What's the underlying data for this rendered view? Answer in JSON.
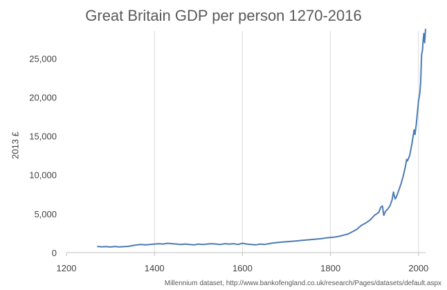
{
  "chart_data": {
    "type": "line",
    "title": "Great Britain GDP per person 1270-2016",
    "xlabel": "",
    "ylabel": "2013 £",
    "xlim": [
      1200,
      2016
    ],
    "ylim": [
      0,
      28500
    ],
    "xticks": [
      1200,
      1400,
      1600,
      1800,
      2000
    ],
    "yticks": [
      0,
      5000,
      10000,
      15000,
      20000,
      25000
    ],
    "ytick_labels": [
      "0",
      "5,000",
      "10,000",
      "15,000",
      "20,000",
      "25,000"
    ],
    "grid": "vertical",
    "color": "#4a7ab5",
    "series": [
      {
        "x": [
          1270,
          1280,
          1290,
          1300,
          1310,
          1320,
          1330,
          1340,
          1350,
          1360,
          1370,
          1380,
          1390,
          1400,
          1410,
          1420,
          1430,
          1440,
          1450,
          1460,
          1470,
          1480,
          1490,
          1500,
          1510,
          1520,
          1530,
          1540,
          1550,
          1560,
          1570,
          1580,
          1590,
          1600,
          1610,
          1620,
          1630,
          1640,
          1650,
          1660,
          1670,
          1680,
          1690,
          1700,
          1710,
          1720,
          1730,
          1740,
          1750,
          1760,
          1770,
          1780,
          1790,
          1800,
          1810,
          1820,
          1830,
          1840,
          1850,
          1860,
          1870,
          1880,
          1890,
          1900,
          1905,
          1910,
          1913,
          1915,
          1918,
          1920,
          1921,
          1925,
          1930,
          1935,
          1940,
          1943,
          1945,
          1947,
          1950,
          1955,
          1960,
          1965,
          1970,
          1973,
          1975,
          1980,
          1985,
          1990,
          1992,
          1995,
          2000,
          2003,
          2005,
          2007,
          2009,
          2010,
          2012,
          2014,
          2016
        ],
        "values": [
          800,
          750,
          780,
          720,
          790,
          740,
          770,
          800,
          900,
          1000,
          1050,
          1000,
          1050,
          1100,
          1150,
          1100,
          1200,
          1150,
          1100,
          1050,
          1100,
          1050,
          1000,
          1100,
          1050,
          1100,
          1150,
          1100,
          1050,
          1150,
          1100,
          1150,
          1050,
          1200,
          1100,
          1050,
          1000,
          1100,
          1050,
          1150,
          1250,
          1300,
          1350,
          1400,
          1450,
          1500,
          1550,
          1600,
          1650,
          1700,
          1750,
          1800,
          1900,
          1950,
          2000,
          2100,
          2250,
          2400,
          2700,
          3000,
          3500,
          3800,
          4200,
          4800,
          5000,
          5200,
          5700,
          5900,
          6000,
          5200,
          4800,
          5300,
          5600,
          6000,
          6800,
          7800,
          7300,
          6900,
          7200,
          8000,
          8800,
          9800,
          11000,
          12000,
          11800,
          12500,
          14000,
          15800,
          15200,
          16500,
          19500,
          20500,
          22000,
          25500,
          26000,
          27000,
          28200,
          27000,
          28800
        ]
      }
    ]
  },
  "source_note": "Millennium dataset, http://www.bankofengland.co.uk/research/Pages/datasets/default.aspx"
}
